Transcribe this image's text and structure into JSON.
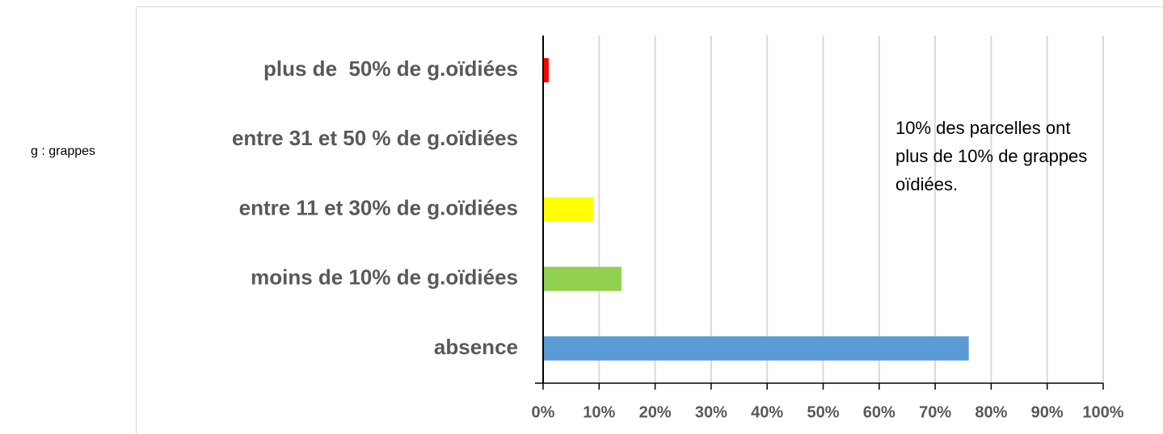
{
  "chart_data": {
    "type": "bar",
    "orientation": "horizontal",
    "categories": [
      "plus de  50% de g.oïdiées",
      "entre 31 et 50 % de g.oïdiées",
      "entre 11 et 30% de g.oïdiées",
      "moins de 10% de g.oïdiées",
      "absence"
    ],
    "values": [
      1,
      0,
      9,
      14,
      76
    ],
    "colors": [
      "#ff0000",
      "#ffc000",
      "#ffff00",
      "#92d050",
      "#5b9bd5"
    ],
    "xlim": [
      0,
      100
    ],
    "xticks": [
      {
        "value": 0,
        "label": "0%"
      },
      {
        "value": 10,
        "label": "10%"
      },
      {
        "value": 20,
        "label": "20%"
      },
      {
        "value": 30,
        "label": "30%"
      },
      {
        "value": 40,
        "label": "40%"
      },
      {
        "value": 50,
        "label": "50%"
      },
      {
        "value": 60,
        "label": "60%"
      },
      {
        "value": 70,
        "label": "70%"
      },
      {
        "value": 80,
        "label": "80%"
      },
      {
        "value": 90,
        "label": "90%"
      },
      {
        "value": 100,
        "label": "100%"
      }
    ],
    "grid": true,
    "annotation_lines": [
      "10% des parcelles ont",
      "plus de 10% de grappes",
      "oïdiées."
    ],
    "side_note": "g : grappes"
  }
}
